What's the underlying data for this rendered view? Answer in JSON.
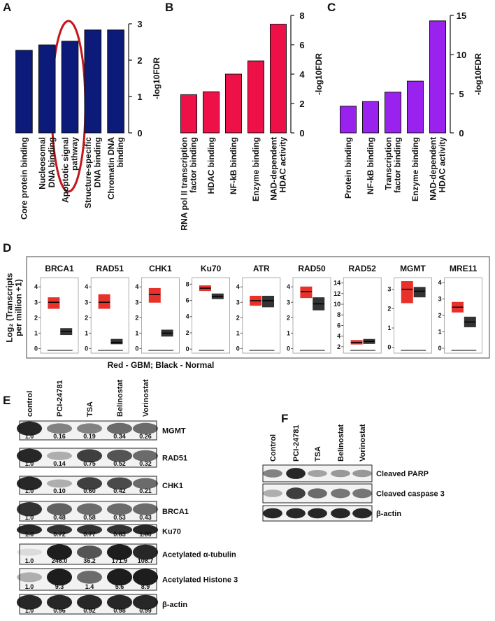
{
  "panel_labels": [
    "A",
    "B",
    "C",
    "D",
    "E",
    "F"
  ],
  "chart_data": [
    {
      "type": "bar",
      "categories": [
        "Core protein binding",
        "Nucleosomal\nDNA binding",
        "Apoptotic signal\npathway",
        "Structure-specific\nDNA binding",
        "Chromatin DNA\nbinding"
      ],
      "values": [
        2.27,
        2.42,
        2.52,
        2.83,
        2.83
      ],
      "color": "#0c1a7a",
      "ylabel": "-log10FDR",
      "ylim": [
        0,
        3
      ],
      "yticks": [
        0,
        1,
        2,
        3
      ],
      "yaxis_side": "right"
    },
    {
      "type": "bar",
      "categories": [
        "RNA pol II transcription\nfactor binding",
        "HDAC binding",
        "NF-kB binding",
        "Enzyme binding",
        "NAD-dependent\nHDAC activity"
      ],
      "values": [
        2.6,
        2.8,
        4.0,
        4.9,
        7.4
      ],
      "color": "#ee1148",
      "ylabel": "-log10FDR",
      "ylim": [
        0,
        8
      ],
      "yticks": [
        0,
        2,
        4,
        6,
        8
      ],
      "yaxis_side": "right"
    },
    {
      "type": "bar",
      "categories": [
        "Protein binding",
        "NF-kB binding",
        "Transcription\nfactor binding",
        "Enzyme binding",
        "NAD-dependent\nHDAC activity"
      ],
      "values": [
        3.4,
        4.0,
        5.2,
        6.6,
        14.3
      ],
      "color": "#9a22ee",
      "ylabel": "-log10FDR",
      "ylim": [
        0,
        15
      ],
      "yticks": [
        0,
        5,
        10,
        15
      ],
      "yaxis_side": "right"
    },
    {
      "type": "box",
      "title": "BRCA1",
      "ylim": [
        -0.3,
        4.6
      ],
      "yticks": [
        0,
        1,
        2,
        3,
        4
      ],
      "boxes": [
        {
          "color": "#e8312a",
          "q1": 2.6,
          "median": 3.0,
          "q3": 3.3
        },
        {
          "color": "#333333",
          "q1": 0.9,
          "median": 1.1,
          "q3": 1.3
        }
      ]
    },
    {
      "type": "box",
      "title": "RAD51",
      "ylim": [
        -0.3,
        4.6
      ],
      "yticks": [
        0,
        1,
        2,
        3,
        4
      ],
      "boxes": [
        {
          "color": "#e8312a",
          "q1": 2.6,
          "median": 3.0,
          "q3": 3.5
        },
        {
          "color": "#333333",
          "q1": 0.3,
          "median": 0.4,
          "q3": 0.6
        }
      ]
    },
    {
      "type": "box",
      "title": "CHK1",
      "ylim": [
        -0.3,
        4.6
      ],
      "yticks": [
        0,
        1,
        2,
        3,
        4
      ],
      "boxes": [
        {
          "color": "#e8312a",
          "q1": 3.0,
          "median": 3.5,
          "q3": 3.9
        },
        {
          "color": "#333333",
          "q1": 0.8,
          "median": 1.0,
          "q3": 1.2
        }
      ]
    },
    {
      "type": "box",
      "title": "Ku70",
      "ylim": [
        -0.5,
        8.8
      ],
      "yticks": [
        0,
        2,
        4,
        6,
        8
      ],
      "boxes": [
        {
          "color": "#e8312a",
          "q1": 7.2,
          "median": 7.5,
          "q3": 7.8
        },
        {
          "color": "#333333",
          "q1": 6.2,
          "median": 6.5,
          "q3": 6.8
        }
      ]
    },
    {
      "type": "box",
      "title": "ATR",
      "ylim": [
        -0.3,
        4.6
      ],
      "yticks": [
        0,
        1,
        2,
        3,
        4
      ],
      "boxes": [
        {
          "color": "#e8312a",
          "q1": 2.8,
          "median": 3.1,
          "q3": 3.4
        },
        {
          "color": "#333333",
          "q1": 2.7,
          "median": 3.1,
          "q3": 3.4
        }
      ]
    },
    {
      "type": "box",
      "title": "RAD50",
      "ylim": [
        -0.3,
        4.6
      ],
      "yticks": [
        0,
        1,
        2,
        3,
        4
      ],
      "boxes": [
        {
          "color": "#e8312a",
          "q1": 3.3,
          "median": 3.7,
          "q3": 4.0
        },
        {
          "color": "#333333",
          "q1": 2.5,
          "median": 2.9,
          "q3": 3.3
        }
      ]
    },
    {
      "type": "box",
      "title": "RAD52",
      "ylim": [
        0.8,
        15
      ],
      "yticks": [
        2,
        4,
        6,
        8,
        10,
        12,
        14
      ],
      "boxes": [
        {
          "color": "#e8312a",
          "q1": 2.5,
          "median": 2.8,
          "q3": 3.2
        },
        {
          "color": "#333333",
          "q1": 2.6,
          "median": 3.0,
          "q3": 3.4
        }
      ]
    },
    {
      "type": "box",
      "title": "MGMT",
      "ylim": [
        -0.3,
        3.6
      ],
      "yticks": [
        0,
        1,
        2,
        3
      ],
      "boxes": [
        {
          "color": "#e8312a",
          "q1": 2.3,
          "median": 3.0,
          "q3": 3.4
        },
        {
          "color": "#333333",
          "q1": 2.6,
          "median": 2.9,
          "q3": 3.1
        }
      ]
    },
    {
      "type": "box",
      "title": "MRE11",
      "ylim": [
        -0.3,
        4.3
      ],
      "yticks": [
        0,
        1,
        2,
        3,
        4
      ],
      "boxes": [
        {
          "color": "#e8312a",
          "q1": 2.2,
          "median": 2.5,
          "q3": 2.8
        },
        {
          "color": "#333333",
          "q1": 1.3,
          "median": 1.6,
          "q3": 1.9
        }
      ]
    }
  ],
  "panel_d": {
    "ylabel": "Log₂ (Transcripts\nper million +1)",
    "caption": "Red - GBM; Black - Normal"
  },
  "panel_e": {
    "columns": [
      "control",
      "PCI-24781",
      "TSA",
      "Belinostat",
      "Vorinostat"
    ],
    "rows": [
      {
        "label": "MGMT",
        "values": [
          "1.0",
          "0.16",
          "0.19",
          "0.34",
          "0.26"
        ]
      },
      {
        "label": "RAD51",
        "values": [
          "1.0",
          "0.14",
          "0.75",
          "0.52",
          "0.32"
        ]
      },
      {
        "label": "CHK1",
        "values": [
          "1.0",
          "0.10",
          "0.60",
          "0.42",
          "0.21"
        ]
      },
      {
        "label": "BRCA1",
        "values": [
          "1.0",
          "0.48",
          "0.58",
          "0.53",
          "0.43"
        ]
      },
      {
        "label": "Ku70",
        "values": [
          "1.0",
          "0.72",
          "0.77",
          "0.83",
          "1.00"
        ]
      },
      {
        "label": "Acetylated α-tubulin",
        "values": [
          "1.0",
          "246.0",
          "36.2",
          "171.9",
          "108.7"
        ]
      },
      {
        "label": "Acetylated Histone 3",
        "values": [
          "1.0",
          "9.3",
          "1.4",
          "5.6",
          "8.9"
        ]
      },
      {
        "label": "β-actin",
        "values": [
          "1.0",
          "0.96",
          "0.92",
          "0.98",
          "0.99"
        ]
      }
    ]
  },
  "panel_f": {
    "columns": [
      "Control",
      "PCI-24781",
      "TSA",
      "Belinostat",
      "Vorinostat"
    ],
    "rows": [
      {
        "label": "Cleaved PARP"
      },
      {
        "label": "Cleaved caspase 3"
      },
      {
        "label": "β-actin"
      }
    ]
  }
}
